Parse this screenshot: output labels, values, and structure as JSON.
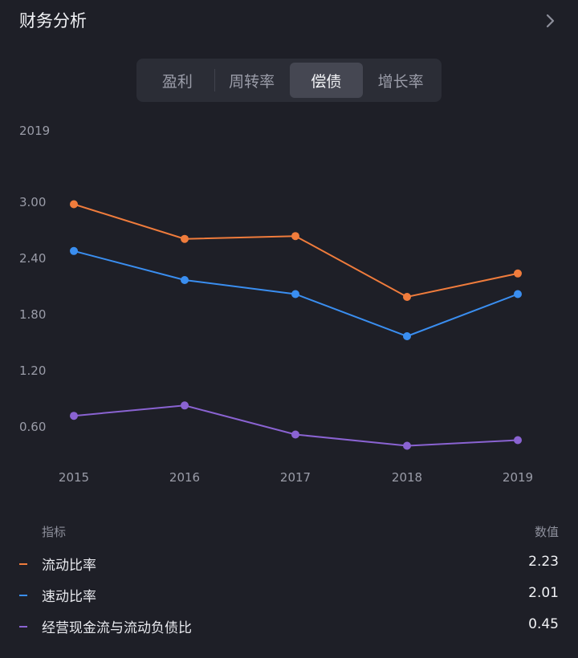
{
  "header": {
    "title": "财务分析"
  },
  "tabs": [
    {
      "label": "盈利",
      "active": false
    },
    {
      "label": "周转率",
      "active": false
    },
    {
      "label": "偿债",
      "active": true
    },
    {
      "label": "增长率",
      "active": false
    }
  ],
  "chart_data": {
    "type": "line",
    "year_label": "2019",
    "categories": [
      "2015",
      "2016",
      "2017",
      "2018",
      "2019"
    ],
    "yticks": [
      "3.00",
      "2.40",
      "1.80",
      "1.20",
      "0.60"
    ],
    "ylim": [
      0.6,
      3.0
    ],
    "grid": false,
    "series": [
      {
        "name": "流动比率",
        "color": "#f07c3c",
        "values": [
          2.97,
          2.6,
          2.63,
          1.98,
          2.23
        ]
      },
      {
        "name": "速动比率",
        "color": "#3a8ef0",
        "values": [
          2.47,
          2.16,
          2.01,
          1.56,
          2.01
        ]
      },
      {
        "name": "经营现金流与流动负债比",
        "color": "#8a63d2",
        "values": [
          0.71,
          0.82,
          0.51,
          0.39,
          0.45
        ]
      }
    ]
  },
  "legend": {
    "header_label": "指标",
    "header_value": "数值",
    "rows": [
      {
        "name": "流动比率",
        "value": "2.23",
        "color": "#f07c3c"
      },
      {
        "name": "速动比率",
        "value": "2.01",
        "color": "#3a8ef0"
      },
      {
        "name": "经营现金流与流动负债比",
        "value": "0.45",
        "color": "#8a63d2"
      }
    ]
  }
}
